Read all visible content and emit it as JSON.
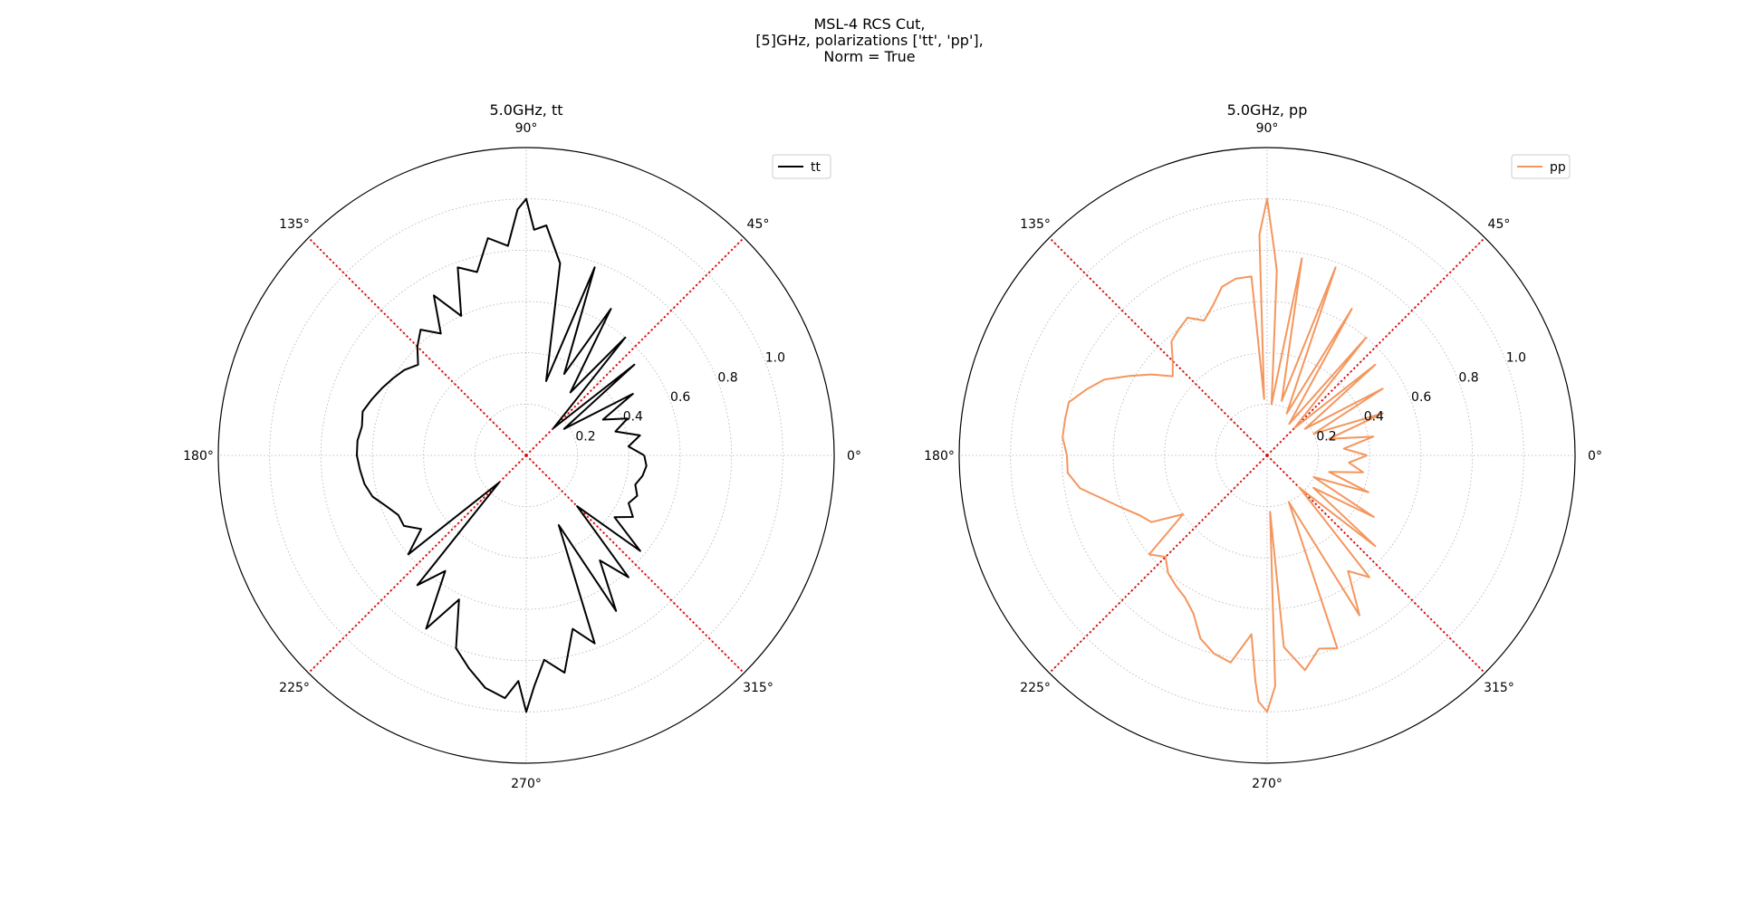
{
  "figure": {
    "title_lines": [
      "MSL-4 RCS Cut,",
      "[5]GHz, polarizations ['tt', 'pp'],",
      "Norm = True"
    ]
  },
  "chart_data": [
    {
      "type": "line",
      "projection": "polar",
      "title": "5.0GHz, tt",
      "angle_ticks_deg": [
        0,
        45,
        90,
        135,
        180,
        225,
        270,
        315
      ],
      "angle_tick_labels": [
        "0°",
        "45°",
        "90°",
        "135°",
        "180°",
        "225°",
        "270°",
        "315°"
      ],
      "radial_ticks": [
        0.2,
        0.4,
        0.6,
        0.8,
        1.0
      ],
      "radial_tick_labels": [
        "0.2",
        "0.4",
        "0.6",
        "0.8",
        "1.0"
      ],
      "rlim": [
        0,
        1.2
      ],
      "grid": true,
      "legend_position": "top-right",
      "color": "#000000",
      "reference_lines_deg": [
        45,
        135,
        225,
        315
      ],
      "reference_line_color": "#e00000",
      "series": [
        {
          "name": "tt",
          "theta_deg": [
            0,
            5,
            10,
            15,
            20,
            25,
            30,
            35,
            40,
            45,
            50,
            55,
            60,
            65,
            70,
            75,
            80,
            85,
            88,
            90,
            92,
            95,
            100,
            105,
            110,
            115,
            120,
            125,
            130,
            135,
            140,
            145,
            150,
            155,
            160,
            165,
            170,
            175,
            180,
            185,
            190,
            195,
            200,
            205,
            210,
            215,
            220,
            225,
            230,
            235,
            240,
            245,
            250,
            255,
            260,
            265,
            268,
            270,
            272,
            275,
            280,
            285,
            290,
            295,
            300,
            305,
            310,
            315,
            320,
            325,
            330,
            335,
            340,
            345,
            350,
            355,
            360
          ],
          "r": [
            0.46,
            0.4,
            0.45,
            0.36,
            0.42,
            0.33,
            0.48,
            0.18,
            0.55,
            0.15,
            0.6,
            0.3,
            0.66,
            0.35,
            0.78,
            0.3,
            0.76,
            0.9,
            0.88,
            1.0,
            0.96,
            0.82,
            0.86,
            0.74,
            0.78,
            0.6,
            0.72,
            0.58,
            0.64,
            0.6,
            0.55,
            0.58,
            0.6,
            0.62,
            0.64,
            0.66,
            0.65,
            0.66,
            0.66,
            0.65,
            0.64,
            0.62,
            0.58,
            0.55,
            0.55,
            0.5,
            0.6,
            0.15,
            0.66,
            0.55,
            0.78,
            0.62,
            0.8,
            0.86,
            0.92,
            0.95,
            0.88,
            1.0,
            0.9,
            0.8,
            0.86,
            0.7,
            0.78,
            0.3,
            0.7,
            0.5,
            0.62,
            0.28,
            0.58,
            0.42,
            0.48,
            0.44,
            0.46,
            0.44,
            0.46,
            0.47,
            0.46
          ]
        }
      ]
    },
    {
      "type": "line",
      "projection": "polar",
      "title": "5.0GHz, pp",
      "angle_ticks_deg": [
        0,
        45,
        90,
        135,
        180,
        225,
        270,
        315
      ],
      "angle_tick_labels": [
        "0°",
        "45°",
        "90°",
        "135°",
        "180°",
        "225°",
        "270°",
        "315°"
      ],
      "radial_ticks": [
        0.2,
        0.4,
        0.6,
        0.8,
        1.0
      ],
      "radial_tick_labels": [
        "0.2",
        "0.4",
        "0.6",
        "0.8",
        "1.0"
      ],
      "rlim": [
        0,
        1.2
      ],
      "grid": true,
      "legend_position": "top-right",
      "color": "#f4965e",
      "reference_lines_deg": [
        45,
        135,
        225,
        315
      ],
      "reference_line_color": "#e00000",
      "series": [
        {
          "name": "pp",
          "theta_deg": [
            0,
            5,
            10,
            15,
            20,
            25,
            30,
            35,
            40,
            45,
            50,
            55,
            60,
            65,
            70,
            75,
            80,
            85,
            87,
            88,
            90,
            92,
            93,
            95,
            100,
            105,
            110,
            115,
            120,
            125,
            130,
            135,
            140,
            145,
            150,
            155,
            160,
            165,
            170,
            175,
            180,
            185,
            190,
            195,
            200,
            205,
            210,
            215,
            220,
            225,
            230,
            235,
            240,
            245,
            250,
            255,
            260,
            265,
            267,
            268,
            270,
            272,
            273,
            275,
            280,
            285,
            290,
            295,
            300,
            305,
            310,
            315,
            320,
            325,
            330,
            335,
            340,
            345,
            350,
            355,
            360
          ],
          "r": [
            0.39,
            0.3,
            0.42,
            0.25,
            0.48,
            0.2,
            0.52,
            0.18,
            0.55,
            0.15,
            0.6,
            0.15,
            0.66,
            0.18,
            0.78,
            0.22,
            0.78,
            0.2,
            0.72,
            0.8,
            1.0,
            0.86,
            0.22,
            0.7,
            0.7,
            0.68,
            0.62,
            0.58,
            0.62,
            0.6,
            0.58,
            0.52,
            0.48,
            0.55,
            0.62,
            0.7,
            0.75,
            0.8,
            0.8,
            0.8,
            0.78,
            0.78,
            0.74,
            0.66,
            0.6,
            0.55,
            0.52,
            0.4,
            0.6,
            0.56,
            0.6,
            0.62,
            0.64,
            0.68,
            0.76,
            0.8,
            0.82,
            0.7,
            0.88,
            0.96,
            1.0,
            0.9,
            0.22,
            0.75,
            0.85,
            0.78,
            0.8,
            0.2,
            0.72,
            0.55,
            0.62,
            0.18,
            0.55,
            0.22,
            0.48,
            0.2,
            0.42,
            0.25,
            0.38,
            0.32,
            0.39
          ]
        }
      ]
    }
  ]
}
